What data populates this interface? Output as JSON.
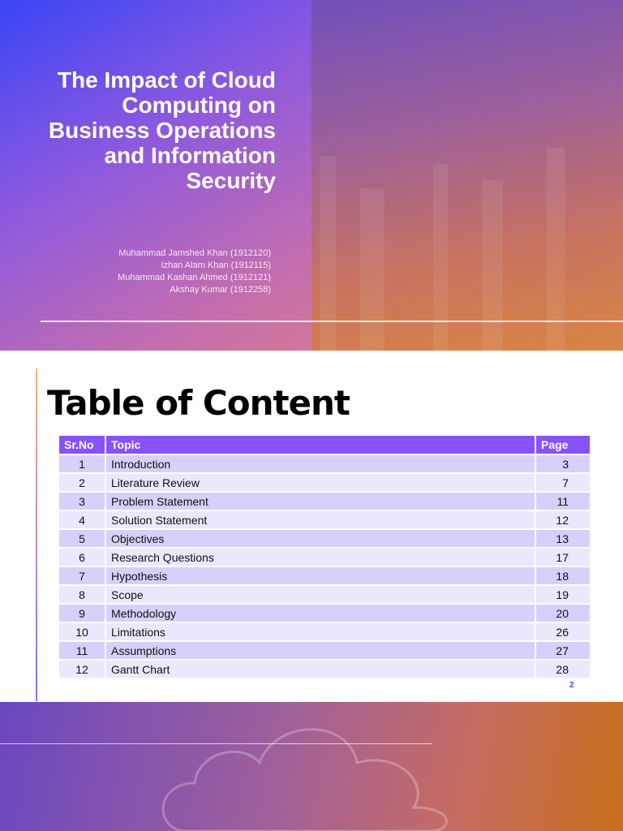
{
  "cover": {
    "title": "The Impact of Cloud Computing on Business Operations and Information Security",
    "authors": [
      "Muhammad Jamshed Khan (1912120)",
      "Izhan Alam Khan (1912115)",
      "Muhammad Kashan Ahmed (1912121)",
      "Akshay Kumar (1912258)"
    ]
  },
  "toc": {
    "title": "Table of Content",
    "headers": [
      "Sr.No",
      "Topic",
      "Page"
    ],
    "rows": [
      [
        "1",
        "Introduction",
        "3"
      ],
      [
        "2",
        "Literature Review",
        "7"
      ],
      [
        "3",
        "Problem Statement",
        "11"
      ],
      [
        "4",
        "Solution Statement",
        "12"
      ],
      [
        "5",
        "Objectives",
        "13"
      ],
      [
        "6",
        "Research Questions",
        "17"
      ],
      [
        "7",
        "Hypothesis",
        "18"
      ],
      [
        "8",
        "Scope",
        "19"
      ],
      [
        "9",
        "Methodology",
        "20"
      ],
      [
        "10",
        "Limitations",
        "26"
      ],
      [
        "11",
        "Assumptions",
        "27"
      ],
      [
        "12",
        "Gantt Chart",
        "28"
      ]
    ],
    "page_number": "2"
  },
  "colors": {
    "header": "#8752fb",
    "row_odd": "#d7d0fc",
    "row_even": "#ebe7fd",
    "page_number": "#3c4cf0"
  }
}
